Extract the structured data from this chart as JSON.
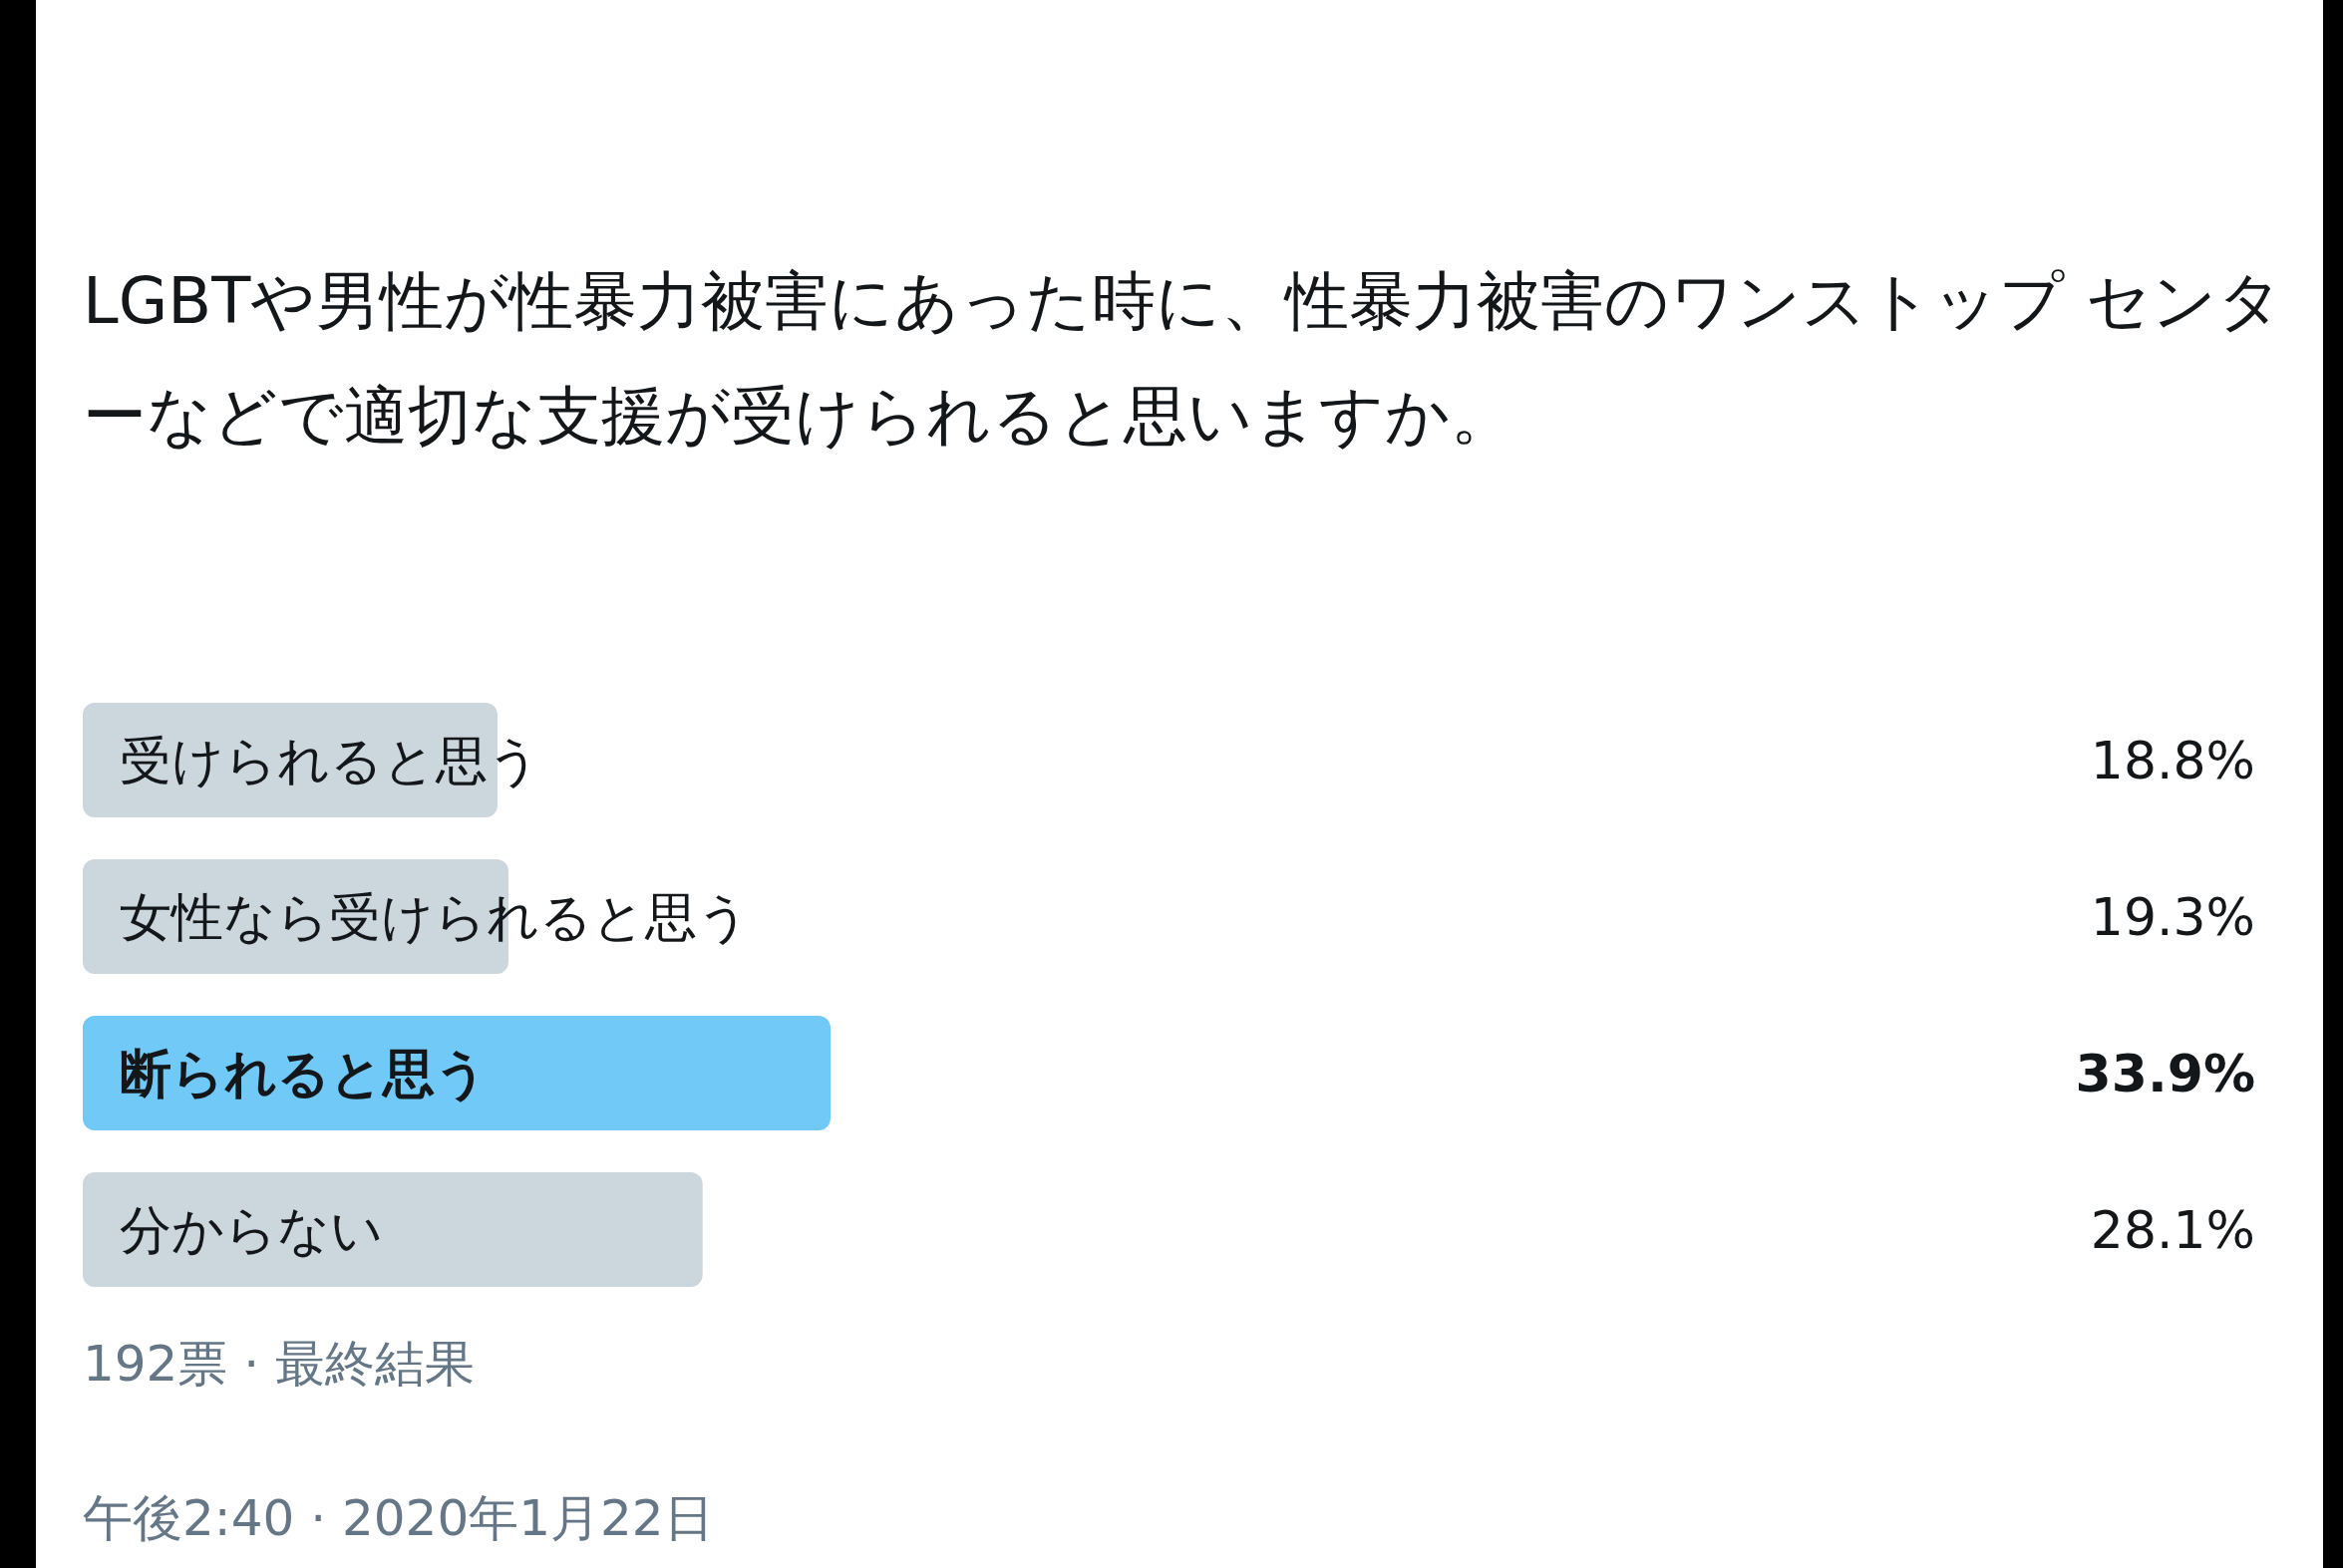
{
  "chart_data": {
    "type": "bar",
    "orientation": "horizontal",
    "title": "LGBTや男性が性暴力被害にあった時に、性暴力被害のワンストップ センターなどで適切な支援が受けられると思いますか。",
    "categories": [
      "受けられると思う",
      "女性なら受けられると思う",
      "断られると思う",
      "分からない"
    ],
    "values": [
      18.8,
      19.3,
      33.9,
      28.1
    ],
    "colors": [
      "#ccd6dd",
      "#ccd6dd",
      "#71c9f8",
      "#ccd6dd"
    ],
    "value_labels": [
      "18.8%",
      "19.3%",
      "33.9%",
      "28.1%"
    ],
    "annotations": [
      "192票 · 最終結果",
      "午後2:40 · 2020年1月22日"
    ]
  }
}
